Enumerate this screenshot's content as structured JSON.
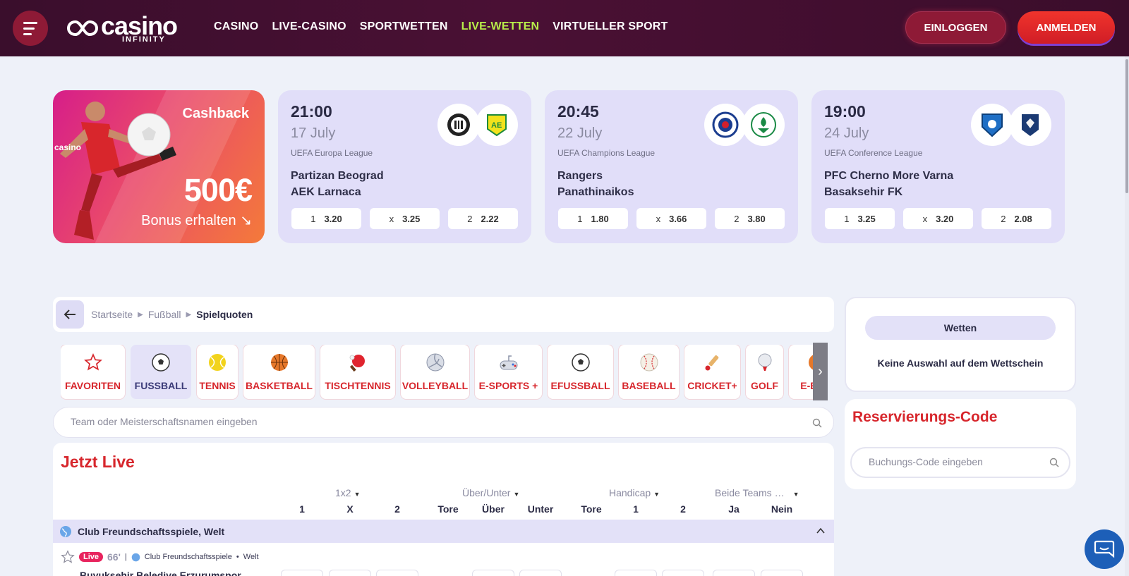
{
  "header": {
    "logo_main": "casino",
    "logo_sub": "INFINITY",
    "nav": [
      "CASINO",
      "LIVE-CASINO",
      "SPORTWETTEN",
      "LIVE-WETTEN",
      "VIRTUELLER SPORT"
    ],
    "active_nav": "LIVE-WETTEN",
    "login_label": "EINLOGGEN",
    "register_label": "ANMELDEN"
  },
  "promo": {
    "title": "Cashback",
    "amount": "500€",
    "cta": "Bonus erhalten ↘"
  },
  "featured_matches": [
    {
      "time": "21:00",
      "date": "17 July",
      "league": "UEFA Europa League",
      "home": "Partizan Beograd",
      "away": "AEK Larnaca",
      "odds": [
        {
          "label": "1",
          "value": "3.20"
        },
        {
          "label": "x",
          "value": "3.25"
        },
        {
          "label": "2",
          "value": "2.22"
        }
      ]
    },
    {
      "time": "20:45",
      "date": "22 July",
      "league": "UEFA Champions League",
      "home": "Rangers",
      "away": "Panathinaikos",
      "odds": [
        {
          "label": "1",
          "value": "1.80"
        },
        {
          "label": "x",
          "value": "3.66"
        },
        {
          "label": "2",
          "value": "3.80"
        }
      ]
    },
    {
      "time": "19:00",
      "date": "24 July",
      "league": "UEFA Conference League",
      "home": "PFC Cherno More Varna",
      "away": "Basaksehir FK",
      "odds": [
        {
          "label": "1",
          "value": "3.25"
        },
        {
          "label": "x",
          "value": "3.20"
        },
        {
          "label": "2",
          "value": "2.08"
        }
      ]
    }
  ],
  "breadcrumb": [
    "Startseite",
    "Fußball",
    "Spielquoten"
  ],
  "sports": [
    "FAVORITEN",
    "FUSSBALL",
    "TENNIS",
    "BASKETBALL",
    "TISCHTENNIS",
    "VOLLEYBALL",
    "E-SPORTS +",
    "EFUSSBALL",
    "BASEBALL",
    "CRICKET+",
    "GOLF",
    "E-BASI"
  ],
  "selected_sport": "FUSSBALL",
  "search": {
    "placeholder": "Team oder Meisterschaftsnamen eingeben"
  },
  "live": {
    "title": "Jetzt Live",
    "markets": [
      "1x2",
      "Über/Unter",
      "Handicap",
      "Beide Teams …"
    ],
    "columns": [
      "1",
      "X",
      "2",
      "Tore",
      "Über",
      "Unter",
      "Tore",
      "1",
      "2",
      "Ja",
      "Nein"
    ],
    "competition": "Club Freundschaftsspiele, Welt",
    "event": {
      "badge": "Live",
      "minute": "66'",
      "separator": "|",
      "competition": "Club Freundschaftsspiele",
      "region": "Welt",
      "team": "Buyuksehir Belediye Erzurumspor"
    }
  },
  "betslip": {
    "tab": "Wetten",
    "empty": "Keine Auswahl auf dem Wettschein"
  },
  "reservation": {
    "title": "Reservierungs-Code",
    "placeholder": "Buchungs-Code eingeben"
  },
  "colors": {
    "accent_red": "#d7262c",
    "active_nav": "#b8ee4a",
    "header_bg": "#4a1034",
    "card_bg": "#e1def9"
  }
}
